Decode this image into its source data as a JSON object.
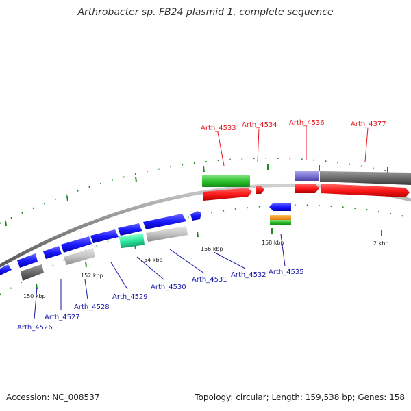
{
  "title": "Arthrobacter sp. FB24 plasmid 1, complete sequence",
  "footer": {
    "accession": "Accession: NC_008537",
    "summary": "Topology: circular; Length: 159,538 bp; Genes: 158"
  },
  "scale_labels": [
    "150 kbp",
    "152 kbp",
    "154 kbp",
    "156 kbp",
    "158 kbp",
    "2 kbp"
  ],
  "genes_forward": [
    "Arth_4533",
    "Arth_4534",
    "Arth_4536",
    "Arth_4377"
  ],
  "genes_reverse": [
    "Arth_4526",
    "Arth_4527",
    "Arth_4528",
    "Arth_4529",
    "Arth_4530",
    "Arth_4531",
    "Arth_4532",
    "Arth_4535"
  ],
  "colors": {
    "forward_label": "#e8141b",
    "reverse_label": "#1717a8",
    "cds_forward": "#ff1a1a",
    "cds_reverse": "#1a1aff",
    "backbone": "#8a8a8a",
    "ticks": "#1e8a1e"
  }
}
